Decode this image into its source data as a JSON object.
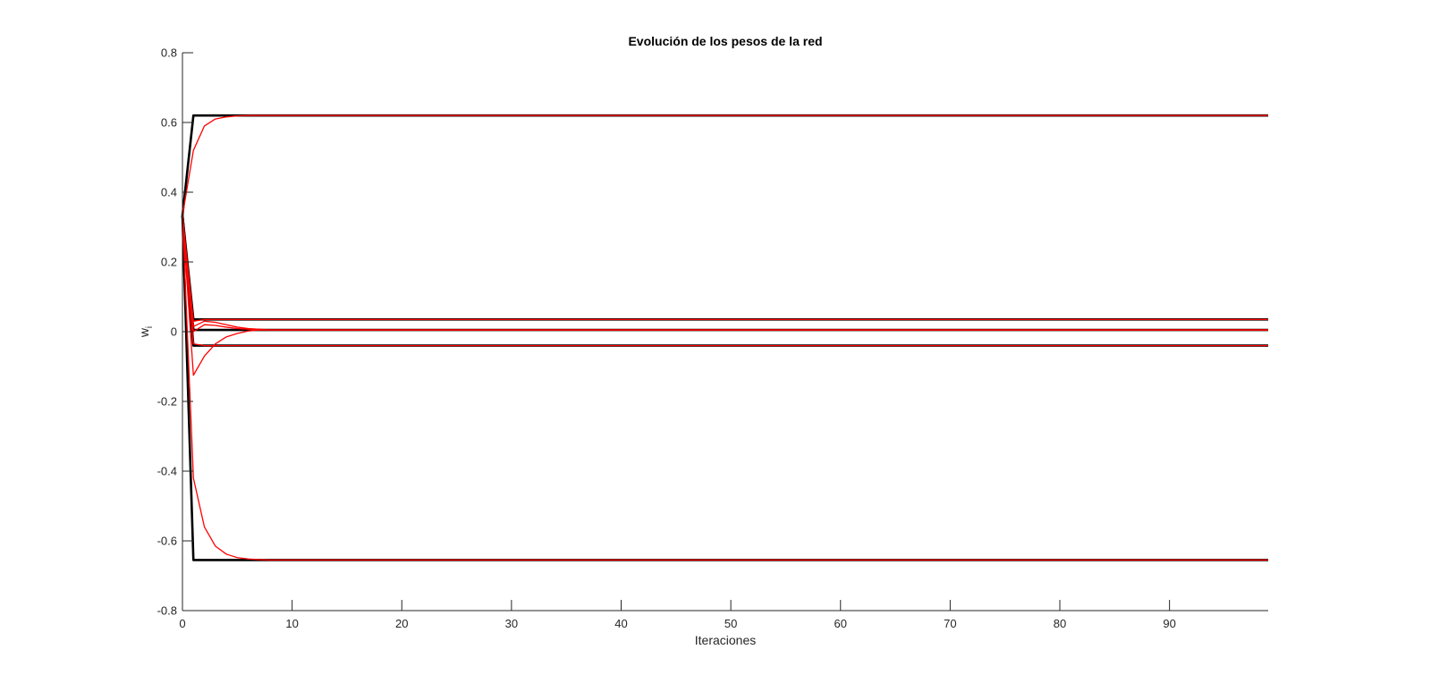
{
  "chart_data": {
    "type": "line",
    "title": "Evolución de los pesos de la red",
    "xlabel": "Iteraciones",
    "ylabel": "w",
    "ylabel_subscript": "i",
    "xlim": [
      0,
      99
    ],
    "ylim": [
      -0.8,
      0.8
    ],
    "xticks": [
      0,
      10,
      20,
      30,
      40,
      50,
      60,
      70,
      80,
      90
    ],
    "yticks": [
      -0.8,
      -0.6,
      -0.4,
      -0.2,
      0,
      0.2,
      0.4,
      0.6,
      0.8
    ],
    "ytick_labels": [
      "-0.8",
      "-0.6",
      "-0.4",
      "-0.2",
      "0",
      "0.2",
      "0.4",
      "0.6",
      "0.8"
    ],
    "grid": false,
    "colors": {
      "ideal": "#000000",
      "learned": "#ff0000",
      "axis": "#262626"
    },
    "series": [
      {
        "group": "ideal",
        "x": [
          0,
          1,
          99
        ],
        "y": [
          0.333,
          0.62,
          0.62
        ]
      },
      {
        "group": "ideal",
        "x": [
          0,
          1,
          99
        ],
        "y": [
          0.333,
          0.035,
          0.035
        ]
      },
      {
        "group": "ideal",
        "x": [
          0,
          1,
          99
        ],
        "y": [
          0.333,
          0.005,
          0.005
        ]
      },
      {
        "group": "ideal",
        "x": [
          0,
          1,
          99
        ],
        "y": [
          0.333,
          -0.04,
          -0.04
        ]
      },
      {
        "group": "ideal",
        "x": [
          0,
          1,
          99
        ],
        "y": [
          0.333,
          -0.655,
          -0.655
        ]
      },
      {
        "group": "learned",
        "x": [
          0,
          1,
          2,
          3,
          4,
          5,
          6,
          7,
          8,
          9,
          10,
          99
        ],
        "y": [
          0.333,
          0.52,
          0.59,
          0.61,
          0.616,
          0.619,
          0.62,
          0.62,
          0.62,
          0.62,
          0.62,
          0.62
        ]
      },
      {
        "group": "learned",
        "x": [
          0,
          1,
          2,
          3,
          4,
          5,
          6,
          7,
          8,
          99
        ],
        "y": [
          0.333,
          0.015,
          0.03,
          0.027,
          0.02,
          0.013,
          0.009,
          0.007,
          0.005,
          0.005
        ]
      },
      {
        "group": "learned",
        "x": [
          0,
          1,
          2,
          3,
          4,
          5,
          6,
          7,
          8,
          99
        ],
        "y": [
          0.333,
          0.0,
          0.02,
          0.018,
          0.013,
          0.009,
          0.007,
          0.005,
          0.005,
          0.005
        ]
      },
      {
        "group": "learned",
        "x": [
          0,
          1,
          2,
          3,
          4,
          5,
          6,
          7,
          8,
          99
        ],
        "y": [
          0.333,
          -0.125,
          -0.07,
          -0.035,
          -0.015,
          -0.005,
          0.002,
          0.005,
          0.005,
          0.005
        ]
      },
      {
        "group": "learned",
        "x": [
          0,
          1,
          2,
          3,
          4,
          5,
          6,
          8,
          10,
          99
        ],
        "y": [
          0.333,
          0.03,
          0.035,
          0.035,
          0.035,
          0.035,
          0.035,
          0.035,
          0.035,
          0.035
        ]
      },
      {
        "group": "learned",
        "x": [
          0,
          1,
          2,
          3,
          4,
          5,
          6,
          8,
          10,
          99
        ],
        "y": [
          0.333,
          -0.035,
          -0.04,
          -0.04,
          -0.04,
          -0.04,
          -0.04,
          -0.04,
          -0.04,
          -0.04
        ]
      },
      {
        "group": "learned",
        "x": [
          0,
          1,
          2,
          3,
          4,
          5,
          6,
          7,
          8,
          9,
          10,
          99
        ],
        "y": [
          0.333,
          -0.42,
          -0.56,
          -0.615,
          -0.638,
          -0.648,
          -0.652,
          -0.654,
          -0.655,
          -0.655,
          -0.655,
          -0.655
        ]
      }
    ]
  }
}
